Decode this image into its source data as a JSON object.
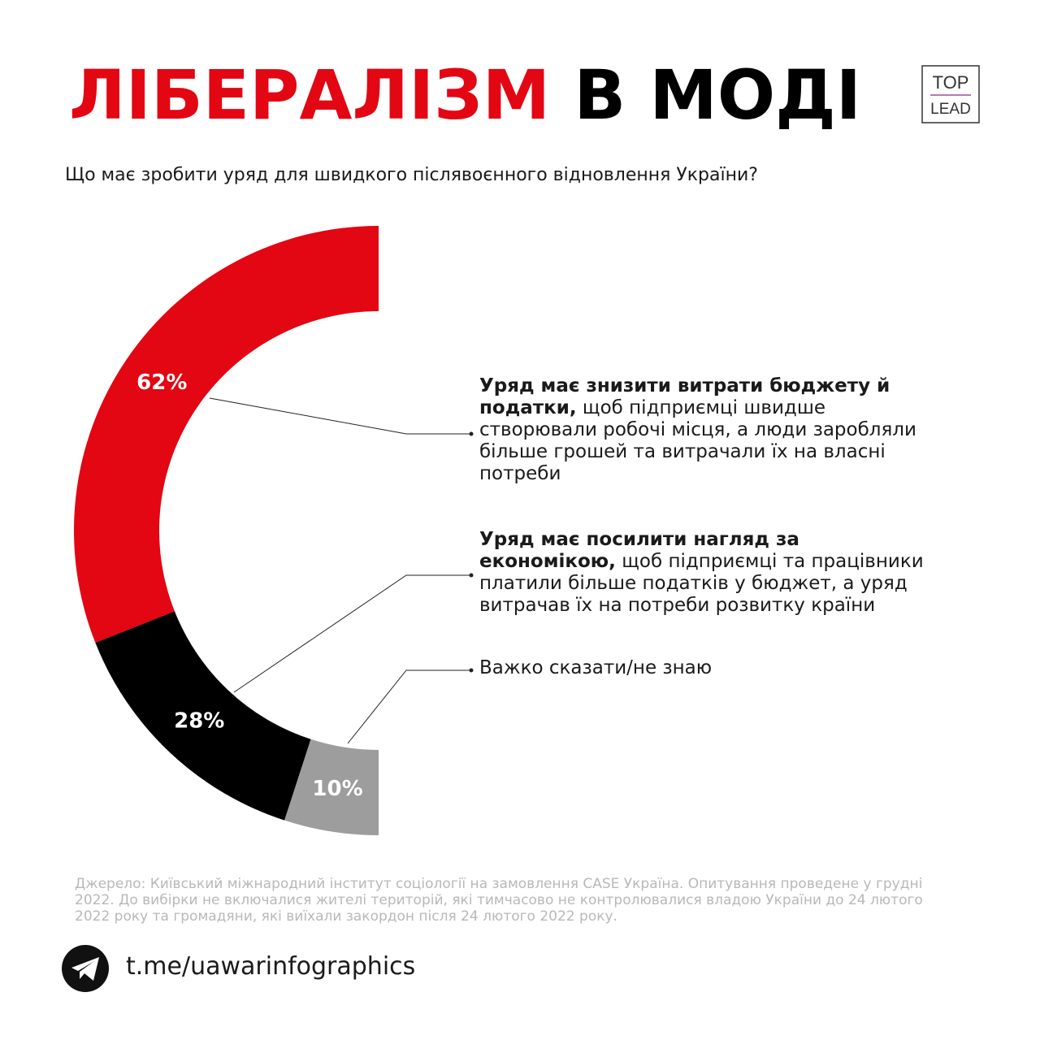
{
  "header": {
    "title_accent": "ЛІБЕРАЛІЗМ",
    "title_rest": "В МОДІ",
    "logo_top": "TOP",
    "logo_bottom": "LEAD"
  },
  "chart_data": {
    "type": "pie",
    "subtitle": "Що має зробити уряд для швидкого післявоєнного відновлення України?",
    "values": [
      62,
      28,
      10
    ],
    "value_labels": [
      "62%",
      "28%",
      "10%"
    ],
    "colors": [
      "#e30613",
      "#000000",
      "#9d9d9d"
    ],
    "categories": [
      {
        "emphasis": "Уряд має знизити витрати бюджету й податки,",
        "text": "щоб підприємці швидше створювали робочі місця, а люди заробляли більше грошей та витрачали їх на власні потреби"
      },
      {
        "emphasis": "Уряд має посилити нагляд за економікою,",
        "text": "щоб підприємці та працівники платили більше податків у бюджет, а уряд витрачав їх на потреби розвитку країни"
      },
      {
        "text": "Важко сказати/не знаю"
      }
    ]
  },
  "footer": {
    "source": "Джерело: Київський міжнародний інститут соціології на замовлення CASE Україна. Опитування проведене у грудні 2022. До вибірки не включалися жителі територій, які тимчасово не контролювалися владою України до 24 лютого 2022 року та громадяни, які виїхали закордон після 24 лютого 2022 року.",
    "link": "t.me/uawarinfographics"
  }
}
